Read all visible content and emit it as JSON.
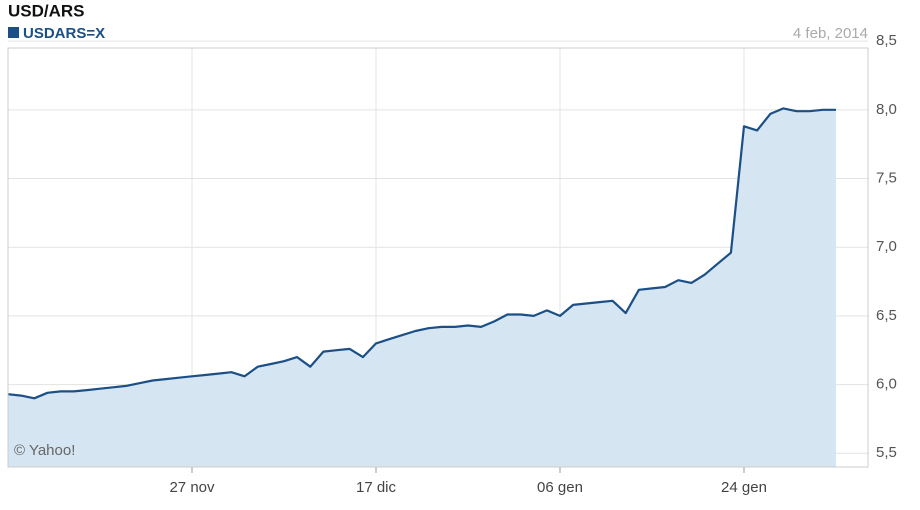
{
  "chart_data": {
    "type": "area",
    "title": "USD/ARS",
    "date_label": "4 feb, 2014",
    "watermark": "© Yahoo!",
    "categories": [
      null,
      null,
      null,
      null,
      null,
      null,
      null,
      null,
      null,
      null,
      null,
      null,
      null,
      null,
      "27 nov",
      null,
      null,
      null,
      null,
      null,
      null,
      null,
      null,
      null,
      null,
      null,
      null,
      null,
      "17 dic",
      null,
      null,
      null,
      null,
      null,
      null,
      null,
      null,
      null,
      null,
      null,
      null,
      null,
      "06 gen",
      null,
      null,
      null,
      null,
      null,
      null,
      null,
      null,
      null,
      null,
      null,
      null,
      null,
      "24 gen",
      null,
      null,
      null,
      null,
      null,
      null,
      null
    ],
    "series": [
      {
        "name": "USDARS=X",
        "color": "#1b4f86",
        "fill": "#d6e5f2",
        "values": [
          5.93,
          5.92,
          5.9,
          5.94,
          5.95,
          5.95,
          5.96,
          5.97,
          5.98,
          5.99,
          6.01,
          6.03,
          6.04,
          6.05,
          6.06,
          6.07,
          6.08,
          6.09,
          6.06,
          6.13,
          6.15,
          6.17,
          6.2,
          6.13,
          6.24,
          6.25,
          6.26,
          6.2,
          6.3,
          6.33,
          6.36,
          6.39,
          6.41,
          6.42,
          6.42,
          6.43,
          6.42,
          6.46,
          6.51,
          6.51,
          6.5,
          6.54,
          6.5,
          6.58,
          6.59,
          6.6,
          6.61,
          6.52,
          6.69,
          6.7,
          6.71,
          6.76,
          6.74,
          6.8,
          6.88,
          6.96,
          7.88,
          7.85,
          7.97,
          8.01,
          7.99,
          7.99,
          8.0,
          8.0
        ]
      }
    ],
    "ylim": [
      5.4,
      8.45
    ],
    "yticks": [
      {
        "value": 5.5,
        "label": "5,5"
      },
      {
        "value": 6.0,
        "label": "6,0"
      },
      {
        "value": 6.5,
        "label": "6,5"
      },
      {
        "value": 7.0,
        "label": "7,0"
      },
      {
        "value": 7.5,
        "label": "7,5"
      },
      {
        "value": 8.0,
        "label": "8,0"
      },
      {
        "value": 8.5,
        "label": "8,5"
      }
    ],
    "grid": true
  }
}
